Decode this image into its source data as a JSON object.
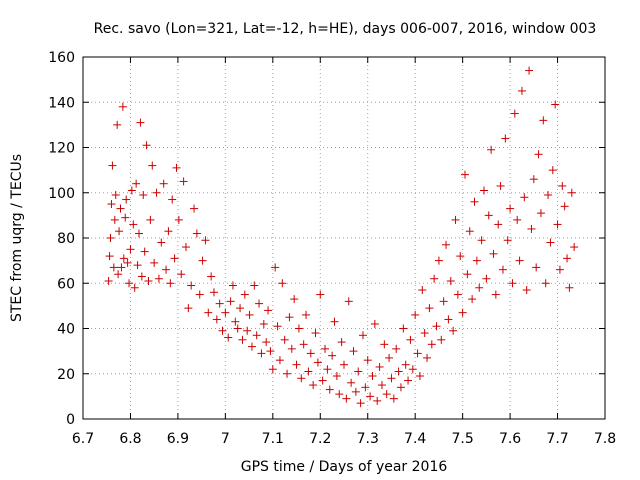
{
  "chart_data": {
    "type": "scatter",
    "title": "Rec. savo (Lon=321, Lat=-12, h=HE), days 006-007, 2016, window 003",
    "xlabel": "GPS time / Days of year 2016",
    "ylabel": "STEC from uqrg / TECUs",
    "xlim": [
      6.7,
      7.8
    ],
    "ylim": [
      0,
      160
    ],
    "xticks": [
      6.7,
      6.8,
      6.9,
      7,
      7.1,
      7.2,
      7.3,
      7.4,
      7.5,
      7.6,
      7.7,
      7.8
    ],
    "xtick_labels": [
      "6.7",
      "6.8",
      "6.9",
      "7",
      "7.1",
      "7.2",
      "7.3",
      "7.4",
      "7.5",
      "7.6",
      "7.7",
      "7.8"
    ],
    "yticks": [
      0,
      20,
      40,
      60,
      80,
      100,
      120,
      140,
      160
    ],
    "ytick_labels": [
      "0",
      "20",
      "40",
      "60",
      "80",
      "100",
      "120",
      "140",
      "160"
    ],
    "grid": true,
    "marker": "plus",
    "series": [
      {
        "color": "#cc0000",
        "points": [
          [
            6.754,
            61
          ],
          [
            6.756,
            72
          ],
          [
            6.758,
            80
          ],
          [
            6.76,
            95
          ],
          [
            6.762,
            112
          ],
          [
            6.765,
            67
          ],
          [
            6.767,
            88
          ],
          [
            6.769,
            99
          ],
          [
            6.772,
            130
          ],
          [
            6.774,
            64
          ],
          [
            6.776,
            83
          ],
          [
            6.779,
            93
          ],
          [
            6.781,
            67
          ],
          [
            6.784,
            138
          ],
          [
            6.786,
            71
          ],
          [
            6.789,
            89
          ],
          [
            6.791,
            97
          ],
          [
            6.794,
            69
          ],
          [
            6.797,
            60
          ],
          [
            6.8,
            75
          ],
          [
            6.803,
            101
          ],
          [
            6.806,
            86
          ],
          [
            6.809,
            58
          ],
          [
            6.812,
            104
          ],
          [
            6.815,
            68
          ],
          [
            6.818,
            82
          ],
          [
            6.821,
            131
          ],
          [
            6.824,
            63
          ],
          [
            6.827,
            99
          ],
          [
            6.83,
            74
          ],
          [
            6.834,
            121
          ],
          [
            6.838,
            61
          ],
          [
            6.842,
            88
          ],
          [
            6.846,
            112
          ],
          [
            6.85,
            69
          ],
          [
            6.855,
            100
          ],
          [
            6.86,
            62
          ],
          [
            6.865,
            78
          ],
          [
            6.87,
            104
          ],
          [
            6.875,
            66
          ],
          [
            6.88,
            83
          ],
          [
            6.884,
            60
          ],
          [
            6.888,
            97
          ],
          [
            6.893,
            71
          ],
          [
            6.897,
            111
          ],
          [
            6.902,
            88
          ],
          [
            6.907,
            64
          ],
          [
            6.912,
            105
          ],
          [
            6.917,
            76
          ],
          [
            6.922,
            49
          ],
          [
            6.928,
            59
          ],
          [
            6.934,
            93
          ],
          [
            6.94,
            82
          ],
          [
            6.946,
            55
          ],
          [
            6.952,
            70
          ],
          [
            6.958,
            79
          ],
          [
            6.964,
            47
          ],
          [
            6.97,
            63
          ],
          [
            6.976,
            56
          ],
          [
            6.982,
            44
          ],
          [
            6.988,
            51
          ],
          [
            6.994,
            39
          ],
          [
            7.0,
            47
          ],
          [
            7.006,
            36
          ],
          [
            7.011,
            52
          ],
          [
            7.016,
            59
          ],
          [
            7.021,
            43
          ],
          [
            7.026,
            40
          ],
          [
            7.031,
            49
          ],
          [
            7.036,
            35
          ],
          [
            7.041,
            55
          ],
          [
            7.046,
            39
          ],
          [
            7.051,
            46
          ],
          [
            7.056,
            32
          ],
          [
            7.061,
            59
          ],
          [
            7.066,
            37
          ],
          [
            7.071,
            51
          ],
          [
            7.076,
            29
          ],
          [
            7.081,
            42
          ],
          [
            7.086,
            34
          ],
          [
            7.09,
            48
          ],
          [
            7.095,
            30
          ],
          [
            7.1,
            22
          ],
          [
            7.105,
            67
          ],
          [
            7.11,
            41
          ],
          [
            7.115,
            26
          ],
          [
            7.12,
            60
          ],
          [
            7.125,
            35
          ],
          [
            7.13,
            20
          ],
          [
            7.135,
            45
          ],
          [
            7.14,
            31
          ],
          [
            7.145,
            53
          ],
          [
            7.15,
            24
          ],
          [
            7.155,
            40
          ],
          [
            7.16,
            18
          ],
          [
            7.165,
            33
          ],
          [
            7.17,
            46
          ],
          [
            7.175,
            21
          ],
          [
            7.18,
            29
          ],
          [
            7.185,
            15
          ],
          [
            7.19,
            38
          ],
          [
            7.195,
            25
          ],
          [
            7.2,
            55
          ],
          [
            7.205,
            17
          ],
          [
            7.21,
            31
          ],
          [
            7.215,
            22
          ],
          [
            7.22,
            13
          ],
          [
            7.225,
            28
          ],
          [
            7.23,
            43
          ],
          [
            7.235,
            19
          ],
          [
            7.24,
            11
          ],
          [
            7.245,
            34
          ],
          [
            7.25,
            24
          ],
          [
            7.255,
            9
          ],
          [
            7.26,
            52
          ],
          [
            7.265,
            16
          ],
          [
            7.27,
            30
          ],
          [
            7.275,
            12
          ],
          [
            7.28,
            21
          ],
          [
            7.285,
            7
          ],
          [
            7.29,
            37
          ],
          [
            7.295,
            14
          ],
          [
            7.3,
            26
          ],
          [
            7.305,
            10
          ],
          [
            7.31,
            19
          ],
          [
            7.315,
            42
          ],
          [
            7.32,
            8
          ],
          [
            7.325,
            23
          ],
          [
            7.33,
            15
          ],
          [
            7.335,
            33
          ],
          [
            7.34,
            11
          ],
          [
            7.345,
            27
          ],
          [
            7.35,
            18
          ],
          [
            7.355,
            9
          ],
          [
            7.36,
            31
          ],
          [
            7.365,
            21
          ],
          [
            7.37,
            14
          ],
          [
            7.375,
            40
          ],
          [
            7.38,
            24
          ],
          [
            7.385,
            17
          ],
          [
            7.39,
            35
          ],
          [
            7.395,
            22
          ],
          [
            7.4,
            46
          ],
          [
            7.405,
            29
          ],
          [
            7.41,
            19
          ],
          [
            7.415,
            57
          ],
          [
            7.42,
            38
          ],
          [
            7.425,
            27
          ],
          [
            7.43,
            49
          ],
          [
            7.435,
            33
          ],
          [
            7.44,
            62
          ],
          [
            7.445,
            41
          ],
          [
            7.45,
            70
          ],
          [
            7.455,
            35
          ],
          [
            7.46,
            52
          ],
          [
            7.465,
            77
          ],
          [
            7.47,
            44
          ],
          [
            7.475,
            61
          ],
          [
            7.48,
            39
          ],
          [
            7.485,
            88
          ],
          [
            7.49,
            55
          ],
          [
            7.495,
            72
          ],
          [
            7.5,
            47
          ],
          [
            7.505,
            108
          ],
          [
            7.51,
            64
          ],
          [
            7.515,
            83
          ],
          [
            7.52,
            53
          ],
          [
            7.525,
            96
          ],
          [
            7.53,
            70
          ],
          [
            7.535,
            58
          ],
          [
            7.54,
            79
          ],
          [
            7.545,
            101
          ],
          [
            7.55,
            62
          ],
          [
            7.555,
            90
          ],
          [
            7.56,
            119
          ],
          [
            7.565,
            73
          ],
          [
            7.57,
            55
          ],
          [
            7.575,
            86
          ],
          [
            7.58,
            103
          ],
          [
            7.585,
            66
          ],
          [
            7.59,
            124
          ],
          [
            7.595,
            79
          ],
          [
            7.6,
            93
          ],
          [
            7.605,
            60
          ],
          [
            7.61,
            135
          ],
          [
            7.615,
            88
          ],
          [
            7.62,
            70
          ],
          [
            7.625,
            145
          ],
          [
            7.63,
            98
          ],
          [
            7.635,
            57
          ],
          [
            7.64,
            154
          ],
          [
            7.645,
            84
          ],
          [
            7.65,
            106
          ],
          [
            7.655,
            67
          ],
          [
            7.66,
            117
          ],
          [
            7.665,
            91
          ],
          [
            7.67,
            132
          ],
          [
            7.675,
            60
          ],
          [
            7.68,
            99
          ],
          [
            7.685,
            78
          ],
          [
            7.69,
            110
          ],
          [
            7.695,
            139
          ],
          [
            7.7,
            86
          ],
          [
            7.705,
            66
          ],
          [
            7.71,
            103
          ],
          [
            7.715,
            94
          ],
          [
            7.72,
            71
          ],
          [
            7.725,
            58
          ],
          [
            7.73,
            100
          ],
          [
            7.735,
            76
          ]
        ]
      }
    ]
  }
}
